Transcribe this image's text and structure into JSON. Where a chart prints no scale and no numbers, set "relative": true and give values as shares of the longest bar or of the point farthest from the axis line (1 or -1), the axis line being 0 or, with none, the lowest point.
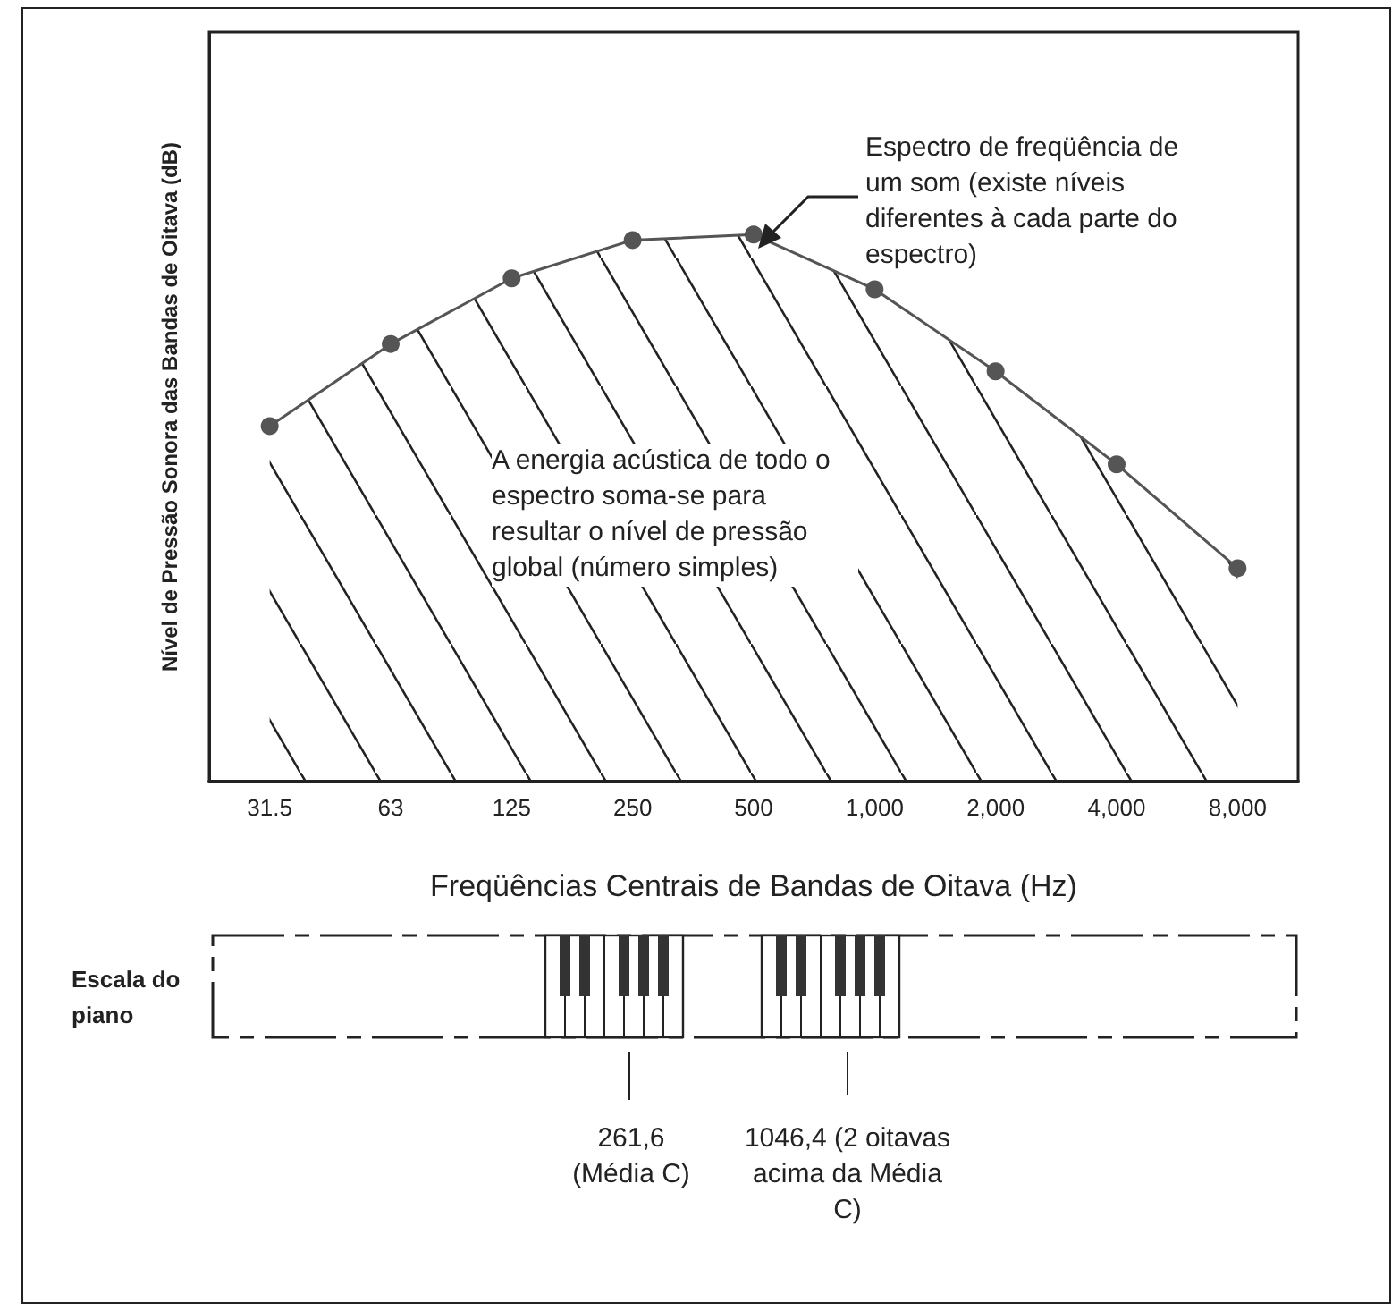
{
  "chart_data": {
    "type": "area",
    "relative": true,
    "xlabel": "Freqüências Centrais de Bandas de Oitava (Hz)",
    "ylabel": "Nível de Pressão Sonora das Bandas de Oitava (dB)",
    "categories": [
      "31.5",
      "63",
      "125",
      "250",
      "500",
      "1,000",
      "2,000",
      "4,000",
      "8,000"
    ],
    "series": [
      {
        "color": "#555555",
        "values": [
          0.65,
          0.8,
          0.92,
          0.99,
          1,
          0.9,
          0.75,
          0.58,
          0.39
        ]
      }
    ],
    "marker": "circle",
    "line_style": "solid",
    "grid": false,
    "annotations": [
      "Espectro de freqüência de um som (existe níveis diferentes à cada parte do espectro)",
      "A energia acústica de todo o espectro soma-se para resultar o nível de pressão global (número simples)",
      "Escala do piano",
      "261,6 (Média C)",
      "1046,4 (2 oitavas acima da Média C)"
    ]
  }
}
